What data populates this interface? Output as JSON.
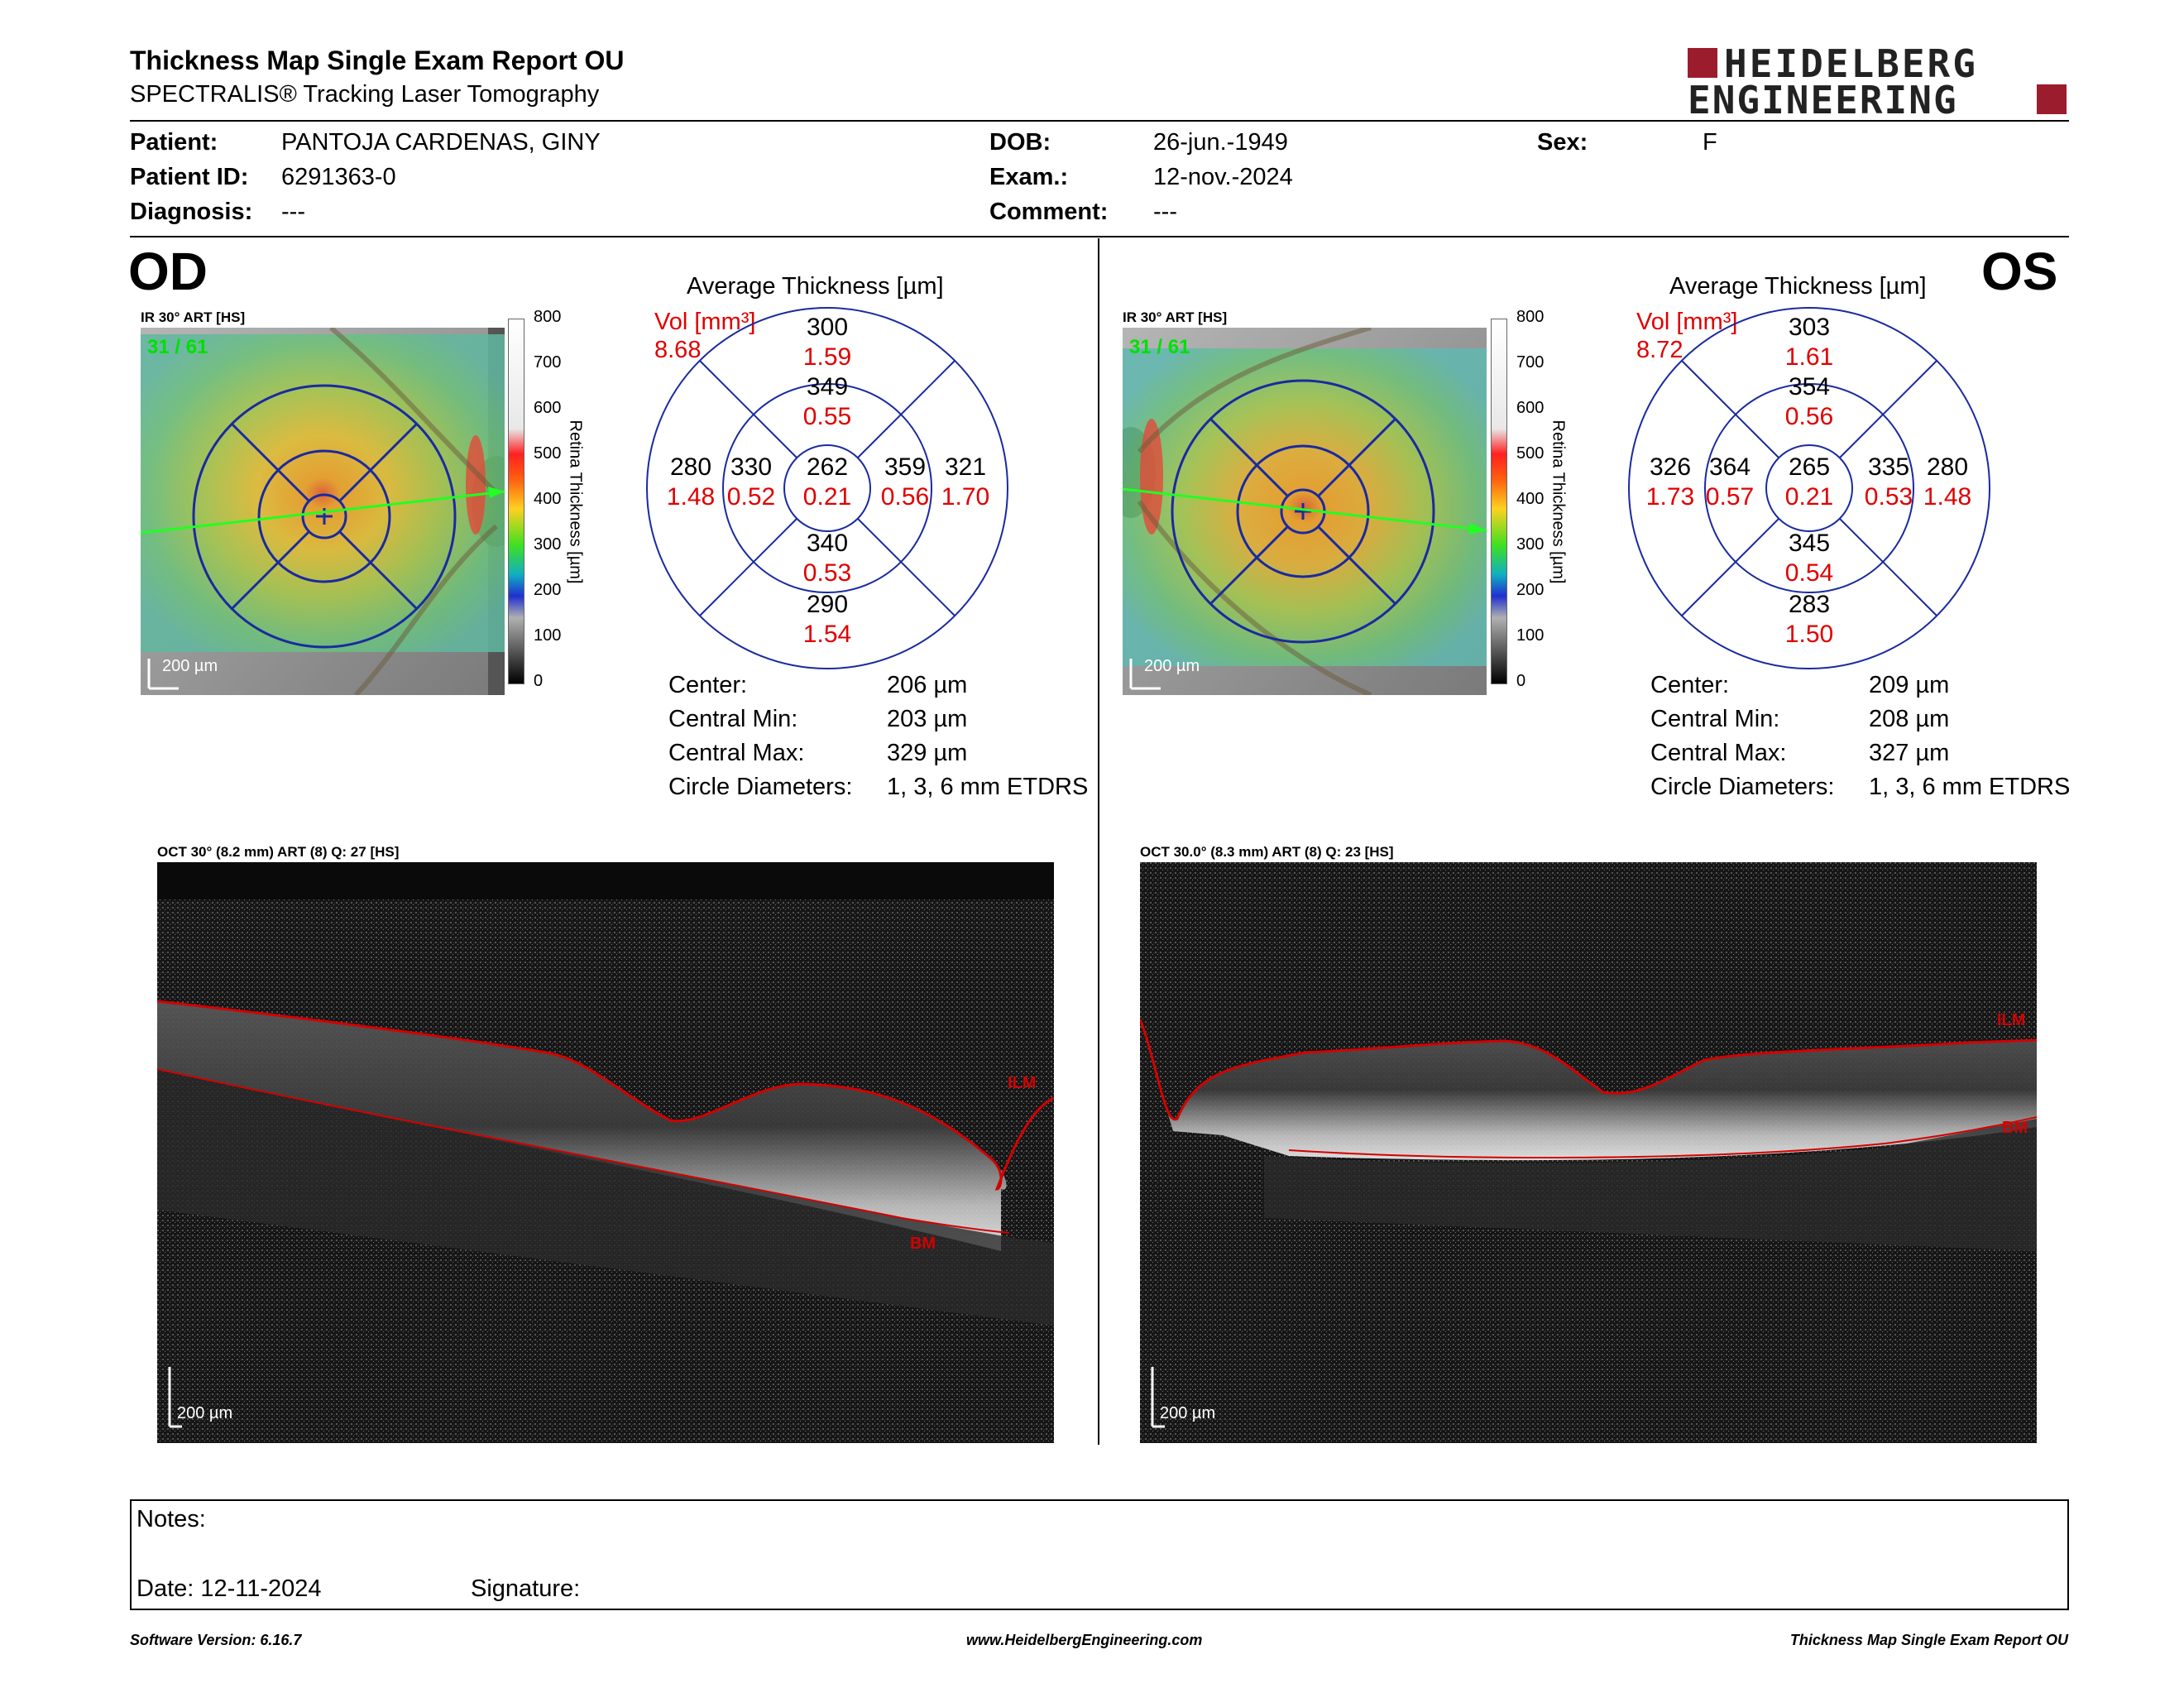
{
  "header": {
    "title": "Thickness Map Single Exam Report OU",
    "subtitle": "SPECTRALIS® Tracking Laser Tomography",
    "logo_line1": "HEIDELBERG",
    "logo_line2": "ENGINEERING"
  },
  "patient": {
    "patient_label": "Patient:",
    "patient_value": "PANTOJA CARDENAS, GINY",
    "id_label": "Patient ID:",
    "id_value": "6291363-0",
    "diagnosis_label": "Diagnosis:",
    "diagnosis_value": "---",
    "dob_label": "DOB:",
    "dob_value": "26-jun.-1949",
    "exam_label": "Exam.:",
    "exam_value": "12-nov.-2024",
    "comment_label": "Comment:",
    "comment_value": "---",
    "sex_label": "Sex:",
    "sex_value": "F"
  },
  "od": {
    "eye": "OD",
    "ir_label": "IR 30° ART [HS]",
    "frame": "31 / 61",
    "scale": "200 µm",
    "avg_title": "Average Thickness [µm]",
    "vol_label": "Vol [mm³]",
    "vol_value": "8.68",
    "sectors": {
      "center": {
        "t": "262",
        "v": "0.21"
      },
      "inner_sup": {
        "t": "349",
        "v": "0.55"
      },
      "inner_inf": {
        "t": "340",
        "v": "0.53"
      },
      "inner_left": {
        "t": "330",
        "v": "0.52"
      },
      "inner_right": {
        "t": "359",
        "v": "0.56"
      },
      "outer_sup": {
        "t": "300",
        "v": "1.59"
      },
      "outer_inf": {
        "t": "290",
        "v": "1.54"
      },
      "outer_left": {
        "t": "280",
        "v": "1.48"
      },
      "outer_right": {
        "t": "321",
        "v": "1.70"
      }
    },
    "stats": {
      "center_label": "Center:",
      "center_value": "206 µm",
      "min_label": "Central Min:",
      "min_value": "203 µm",
      "max_label": "Central Max:",
      "max_value": "329 µm",
      "diam_label": "Circle Diameters:",
      "diam_value": "1, 3, 6 mm ETDRS"
    },
    "oct_label": "OCT 30° (8.2 mm) ART (8) Q: 27 [HS]",
    "ilm": "ILM",
    "bm": "BM",
    "oct_scale": "200 µm"
  },
  "os": {
    "eye": "OS",
    "ir_label": "IR 30° ART [HS]",
    "frame": "31 / 61",
    "scale": "200 µm",
    "avg_title": "Average Thickness [µm]",
    "vol_label": "Vol [mm³]",
    "vol_value": "8.72",
    "sectors": {
      "center": {
        "t": "265",
        "v": "0.21"
      },
      "inner_sup": {
        "t": "354",
        "v": "0.56"
      },
      "inner_inf": {
        "t": "345",
        "v": "0.54"
      },
      "inner_left": {
        "t": "364",
        "v": "0.57"
      },
      "inner_right": {
        "t": "335",
        "v": "0.53"
      },
      "outer_sup": {
        "t": "303",
        "v": "1.61"
      },
      "outer_inf": {
        "t": "283",
        "v": "1.50"
      },
      "outer_left": {
        "t": "326",
        "v": "1.73"
      },
      "outer_right": {
        "t": "280",
        "v": "1.48"
      }
    },
    "stats": {
      "center_label": "Center:",
      "center_value": "209 µm",
      "min_label": "Central Min:",
      "min_value": "208 µm",
      "max_label": "Central Max:",
      "max_value": "327 µm",
      "diam_label": "Circle Diameters:",
      "diam_value": "1, 3, 6 mm ETDRS"
    },
    "oct_label": "OCT 30.0° (8.3 mm) ART (8) Q: 23 [HS]",
    "ilm": "ILM",
    "bm": "BM",
    "oct_scale": "200 µm"
  },
  "colorbar": {
    "ticks": [
      "800",
      "700",
      "600",
      "500",
      "400",
      "300",
      "200",
      "100",
      "0"
    ],
    "axis_label": "Retina Thickness [µm]"
  },
  "notes": {
    "notes_label": "Notes:",
    "date_label": "Date: 12-11-2024",
    "signature_label": "Signature:"
  },
  "footer": {
    "software": "Software Version: 6.16.7",
    "website": "www.HeidelbergEngineering.com",
    "report": "Thickness Map Single Exam Report OU"
  },
  "colors": {
    "volume_red": "#e00000",
    "grid_blue": "#1a2aa0",
    "logo_red": "#9b1c2c",
    "ilm_red": "#d40000",
    "frame_green": "#00e000"
  }
}
